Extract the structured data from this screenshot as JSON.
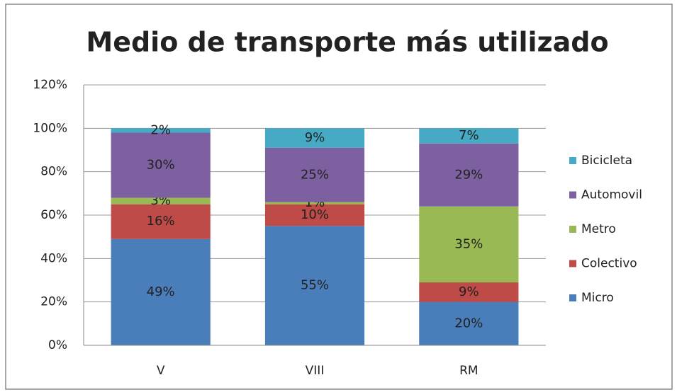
{
  "chart_data": {
    "type": "stacked_bar",
    "title": "Medio de transporte más utilizado",
    "categories": [
      "V",
      "VIII",
      "RM"
    ],
    "series": [
      {
        "name": "Micro",
        "color": "#4a7ebb",
        "values": [
          49,
          55,
          20
        ],
        "value_labels": [
          "49%",
          "55%",
          "20%"
        ]
      },
      {
        "name": "Colectivo",
        "color": "#be4b48",
        "values": [
          16,
          10,
          9
        ],
        "value_labels": [
          "16%",
          "10%",
          "9%"
        ]
      },
      {
        "name": "Metro",
        "color": "#98b954",
        "values": [
          3,
          1,
          35
        ],
        "value_labels": [
          "3%",
          "1%",
          "35%"
        ]
      },
      {
        "name": "Automovil",
        "color": "#7d60a0",
        "values": [
          30,
          25,
          29
        ],
        "value_labels": [
          "30%",
          "25%",
          "29%"
        ]
      },
      {
        "name": "Bicicleta",
        "color": "#46aac5",
        "values": [
          2,
          9,
          7
        ],
        "value_labels": [
          "2%",
          "9%",
          "7%"
        ]
      }
    ],
    "ylim": [
      0,
      120
    ],
    "yticks": [
      {
        "value": 0,
        "label": "0%"
      },
      {
        "value": 20,
        "label": "20%"
      },
      {
        "value": 40,
        "label": "40%"
      },
      {
        "value": 60,
        "label": "60%"
      },
      {
        "value": 80,
        "label": "80%"
      },
      {
        "value": 100,
        "label": "100%"
      },
      {
        "value": 120,
        "label": "120%"
      }
    ],
    "grid": true,
    "legend": "right"
  }
}
